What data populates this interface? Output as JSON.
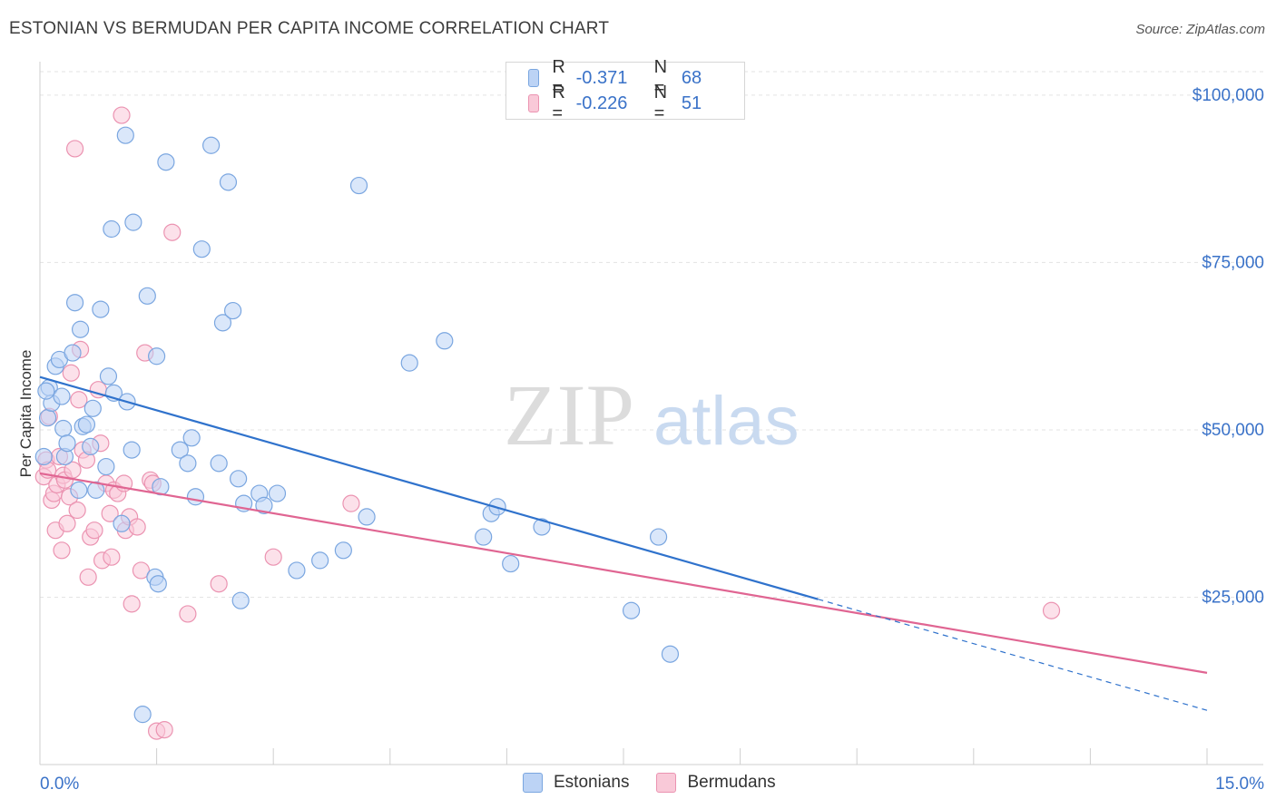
{
  "title": "ESTONIAN VS BERMUDAN PER CAPITA INCOME CORRELATION CHART",
  "source": "Source: ZipAtlas.com",
  "watermark": {
    "zip": "ZIP",
    "atlas": "atlas"
  },
  "legend": {
    "rows": [
      {
        "r_label": "R =",
        "r_value": "-0.371",
        "n_label": "N =",
        "n_value": "68"
      },
      {
        "r_label": "R =",
        "r_value": "-0.226",
        "n_label": "N =",
        "n_value": "51"
      }
    ]
  },
  "colors": {
    "estonians_fill": "#bcd3f5",
    "estonians_stroke": "#7aa6e0",
    "estonians_line": "#2f72cc",
    "bermudans_fill": "#f9c9d8",
    "bermudans_stroke": "#eb93b1",
    "bermudans_line": "#e06592",
    "tick_label": "#3a72c8",
    "grid": "#e3e3e3"
  },
  "chart_data": {
    "type": "scatter",
    "title": "ESTONIAN VS BERMUDAN PER CAPITA INCOME CORRELATION CHART",
    "xlabel": "",
    "ylabel": "Per Capita Income",
    "xlim": [
      0,
      15
    ],
    "ylim": [
      0,
      105000
    ],
    "x_tick_labels": [
      "0.0%",
      "15.0%"
    ],
    "y_ticks": [
      25000,
      50000,
      75000,
      100000
    ],
    "y_tick_labels": [
      "$25,000",
      "$50,000",
      "$75,000",
      "$100,000"
    ],
    "grid": true,
    "legend_position": "top-center",
    "series": [
      {
        "name": "Estonians",
        "r": -0.371,
        "n": 68,
        "trend": {
          "x0": 0,
          "y0": 57900,
          "x1": 10,
          "y1": 24700,
          "dashed_to_x": 15,
          "dashed_to_y": 8100
        },
        "points": [
          [
            0.05,
            46000
          ],
          [
            0.1,
            51800
          ],
          [
            0.12,
            56300
          ],
          [
            0.15,
            54000
          ],
          [
            0.2,
            59500
          ],
          [
            0.25,
            60500
          ],
          [
            0.28,
            55000
          ],
          [
            0.3,
            50200
          ],
          [
            0.32,
            46000
          ],
          [
            0.35,
            48000
          ],
          [
            0.45,
            69000
          ],
          [
            0.5,
            41000
          ],
          [
            0.52,
            65000
          ],
          [
            0.55,
            50500
          ],
          [
            0.6,
            50800
          ],
          [
            0.65,
            47500
          ],
          [
            0.68,
            53200
          ],
          [
            0.72,
            41000
          ],
          [
            0.78,
            68000
          ],
          [
            0.85,
            44500
          ],
          [
            0.88,
            58000
          ],
          [
            0.92,
            80000
          ],
          [
            0.95,
            55500
          ],
          [
            1.05,
            36000
          ],
          [
            1.1,
            94000
          ],
          [
            1.12,
            54200
          ],
          [
            1.18,
            47000
          ],
          [
            1.2,
            81000
          ],
          [
            1.32,
            7500
          ],
          [
            1.38,
            70000
          ],
          [
            1.48,
            28000
          ],
          [
            1.5,
            61000
          ],
          [
            1.52,
            27000
          ],
          [
            1.55,
            41500
          ],
          [
            1.62,
            90000
          ],
          [
            1.8,
            47000
          ],
          [
            1.9,
            45000
          ],
          [
            1.95,
            48800
          ],
          [
            2.0,
            40000
          ],
          [
            2.08,
            77000
          ],
          [
            2.2,
            92500
          ],
          [
            2.3,
            45000
          ],
          [
            2.35,
            66000
          ],
          [
            2.42,
            87000
          ],
          [
            2.48,
            67800
          ],
          [
            2.55,
            42700
          ],
          [
            2.58,
            24500
          ],
          [
            2.62,
            39000
          ],
          [
            2.82,
            40500
          ],
          [
            2.88,
            38700
          ],
          [
            3.05,
            40500
          ],
          [
            3.3,
            29000
          ],
          [
            3.6,
            30500
          ],
          [
            3.9,
            32000
          ],
          [
            4.1,
            86500
          ],
          [
            4.2,
            37000
          ],
          [
            4.75,
            60000
          ],
          [
            5.2,
            63300
          ],
          [
            5.7,
            34000
          ],
          [
            5.8,
            37500
          ],
          [
            5.88,
            38500
          ],
          [
            6.05,
            30000
          ],
          [
            6.45,
            35500
          ],
          [
            7.6,
            23000
          ],
          [
            7.95,
            34000
          ],
          [
            8.1,
            16500
          ],
          [
            0.08,
            55800
          ],
          [
            0.42,
            61500
          ]
        ]
      },
      {
        "name": "Bermudans",
        "r": -0.226,
        "n": 51,
        "trend": {
          "x0": 0,
          "y0": 43500,
          "x1": 15,
          "y1": 13700
        },
        "points": [
          [
            0.05,
            43000
          ],
          [
            0.08,
            45500
          ],
          [
            0.1,
            44000
          ],
          [
            0.12,
            52000
          ],
          [
            0.15,
            39500
          ],
          [
            0.18,
            40500
          ],
          [
            0.2,
            35000
          ],
          [
            0.22,
            41800
          ],
          [
            0.25,
            46000
          ],
          [
            0.28,
            32000
          ],
          [
            0.3,
            43200
          ],
          [
            0.32,
            42500
          ],
          [
            0.35,
            36000
          ],
          [
            0.38,
            40000
          ],
          [
            0.4,
            58500
          ],
          [
            0.42,
            44000
          ],
          [
            0.45,
            92000
          ],
          [
            0.48,
            38000
          ],
          [
            0.5,
            54500
          ],
          [
            0.52,
            62000
          ],
          [
            0.55,
            47000
          ],
          [
            0.6,
            45500
          ],
          [
            0.62,
            28000
          ],
          [
            0.65,
            34000
          ],
          [
            0.7,
            35000
          ],
          [
            0.75,
            56000
          ],
          [
            0.78,
            48000
          ],
          [
            0.8,
            30500
          ],
          [
            0.85,
            42000
          ],
          [
            0.9,
            37500
          ],
          [
            0.92,
            31000
          ],
          [
            0.95,
            41000
          ],
          [
            1.0,
            40500
          ],
          [
            1.05,
            97000
          ],
          [
            1.08,
            42000
          ],
          [
            1.1,
            35000
          ],
          [
            1.15,
            37000
          ],
          [
            1.18,
            24000
          ],
          [
            1.25,
            35500
          ],
          [
            1.3,
            29000
          ],
          [
            1.35,
            61500
          ],
          [
            1.42,
            42500
          ],
          [
            1.45,
            42000
          ],
          [
            1.5,
            5000
          ],
          [
            1.6,
            5200
          ],
          [
            1.7,
            79500
          ],
          [
            1.9,
            22500
          ],
          [
            2.3,
            27000
          ],
          [
            3.0,
            31000
          ],
          [
            4.0,
            39000
          ],
          [
            13.0,
            23000
          ]
        ]
      }
    ]
  }
}
